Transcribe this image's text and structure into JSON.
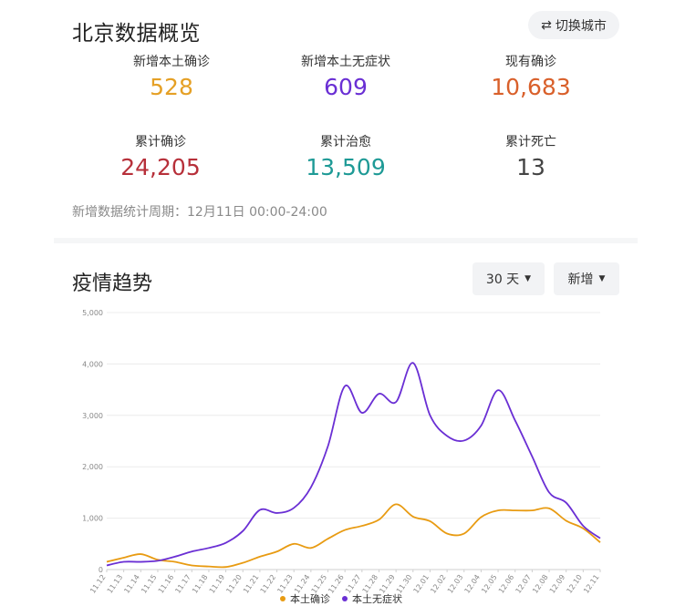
{
  "header": {
    "title": "北京数据概览",
    "switch_label": "切换城市",
    "switch_icon": "swap-arrows-icon"
  },
  "stats": [
    {
      "label": "新增本土确诊",
      "value": "528",
      "color": "#e5a025"
    },
    {
      "label": "新增本土无症状",
      "value": "609",
      "color": "#6a2fd4"
    },
    {
      "label": "现有确诊",
      "value": "10,683",
      "color": "#d9602b"
    },
    {
      "label": "累计确诊",
      "value": "24,205",
      "color": "#b7303a"
    },
    {
      "label": "累计治愈",
      "value": "13,509",
      "color": "#1e9a96"
    },
    {
      "label": "累计死亡",
      "value": "13",
      "color": "#444444"
    }
  ],
  "footnote": "新增数据统计周期：12月11日 00:00-24:00",
  "trend": {
    "title": "疫情趋势",
    "range_label": "30 天",
    "mode_label": "新增"
  },
  "chart_data": {
    "type": "line",
    "x": [
      "11.12",
      "11.13",
      "11.14",
      "11.15",
      "11.16",
      "11.17",
      "11.18",
      "11.19",
      "11.20",
      "11.21",
      "11.22",
      "11.23",
      "11.24",
      "11.25",
      "11.26",
      "11.27",
      "11.28",
      "11.29",
      "11.30",
      "12.01",
      "12.02",
      "12.03",
      "12.04",
      "12.05",
      "12.06",
      "12.07",
      "12.08",
      "12.09",
      "12.10",
      "12.11"
    ],
    "series": [
      {
        "name": "本土确诊",
        "color": "#e89b12",
        "values": [
          150,
          230,
          300,
          190,
          150,
          80,
          60,
          50,
          130,
          250,
          350,
          500,
          420,
          600,
          770,
          850,
          970,
          1270,
          1030,
          940,
          700,
          700,
          1020,
          1150,
          1150,
          1150,
          1190,
          950,
          800,
          528
        ]
      },
      {
        "name": "本土无症状",
        "color": "#6a2fd4",
        "values": [
          80,
          150,
          150,
          170,
          250,
          350,
          420,
          520,
          750,
          1160,
          1100,
          1200,
          1600,
          2400,
          3570,
          3050,
          3420,
          3260,
          4020,
          3000,
          2600,
          2510,
          2800,
          3490,
          2900,
          2200,
          1500,
          1300,
          850,
          609
        ]
      }
    ],
    "ylim": [
      0,
      5000
    ],
    "yticks": [
      "0",
      "1,000",
      "2,000",
      "3,000",
      "4,000",
      "5,000"
    ],
    "grid": true,
    "legend_position": "bottom"
  }
}
